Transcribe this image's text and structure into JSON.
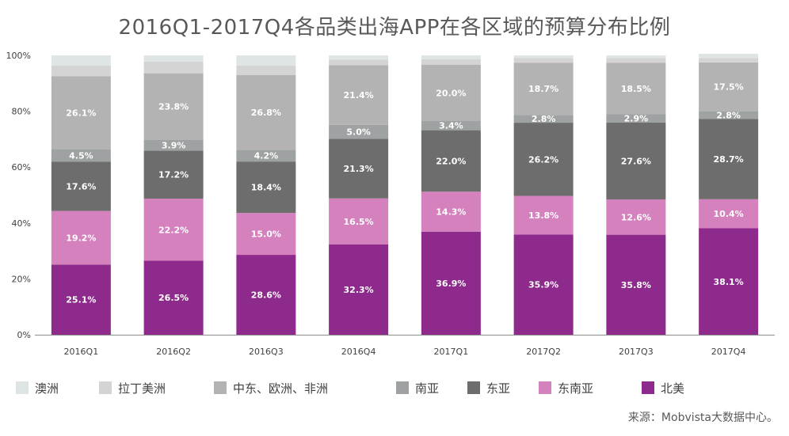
{
  "chart_data": {
    "type": "bar",
    "stacked": true,
    "title": "2016Q1-2017Q4各品类出海APP在各区域的预算分布比例",
    "categories": [
      "2016Q1",
      "2016Q2",
      "2016Q3",
      "2016Q4",
      "2017Q1",
      "2017Q2",
      "2017Q3",
      "2017Q4"
    ],
    "y_ticks": [
      "0%",
      "20%",
      "40%",
      "60%",
      "80%",
      "100%"
    ],
    "ylim": [
      0,
      100
    ],
    "series": [
      {
        "name": "北美",
        "color": "#8e2a8c",
        "values": [
          25.1,
          26.5,
          28.6,
          32.3,
          36.9,
          35.9,
          35.8,
          38.1
        ],
        "labels": [
          "25.1%",
          "26.5%",
          "28.6%",
          "32.3%",
          "36.9%",
          "35.9%",
          "35.8%",
          "38.1%"
        ],
        "label_color": "#ffffff"
      },
      {
        "name": "东南亚",
        "color": "#d481bd",
        "values": [
          19.2,
          22.2,
          15.0,
          16.5,
          14.3,
          13.8,
          12.6,
          10.4
        ],
        "labels": [
          "19.2%",
          "22.2%",
          "15.0%",
          "16.5%",
          "14.3%",
          "13.8%",
          "12.6%",
          "10.4%"
        ],
        "label_color": "#ffffff"
      },
      {
        "name": "东亚",
        "color": "#6d6d6d",
        "values": [
          17.6,
          17.2,
          18.4,
          21.3,
          22.0,
          26.2,
          27.6,
          28.7
        ],
        "labels": [
          "17.6%",
          "17.2%",
          "18.4%",
          "21.3%",
          "22.0%",
          "26.2%",
          "27.6%",
          "28.7%"
        ],
        "label_color": "#ffffff"
      },
      {
        "name": "南亚",
        "color": "#9ea2a2",
        "values": [
          4.5,
          3.9,
          4.2,
          5.0,
          3.4,
          2.8,
          2.9,
          2.8
        ],
        "labels": [
          "4.5%",
          "3.9%",
          "4.2%",
          "5.0%",
          "3.4%",
          "2.8%",
          "2.9%",
          "2.8%"
        ],
        "label_color": "#ffffff"
      },
      {
        "name": "中东、欧洲、非洲",
        "color": "#b3b3b3",
        "values": [
          26.1,
          23.8,
          26.8,
          21.4,
          20.0,
          18.7,
          18.5,
          17.5
        ],
        "labels": [
          "26.1%",
          "23.8%",
          "26.8%",
          "21.4%",
          "20.0%",
          "18.7%",
          "18.5%",
          "17.5%"
        ],
        "label_color": "#ffffff"
      },
      {
        "name": "拉丁美洲",
        "color": "#d4d4d4",
        "values": [
          3.8,
          4.2,
          3.4,
          2.0,
          2.0,
          1.6,
          1.6,
          1.6
        ],
        "labels": null,
        "label_color": "#ffffff"
      },
      {
        "name": "澳洲",
        "color": "#dfe4e4",
        "values": [
          3.7,
          2.2,
          3.6,
          1.5,
          1.4,
          1.0,
          1.0,
          1.5
        ],
        "labels": null,
        "label_color": "#ffffff"
      }
    ],
    "legend_order": [
      "澳洲",
      "拉丁美洲",
      "中东、欧洲、非洲",
      "南亚",
      "东亚",
      "东南亚",
      "北美"
    ],
    "legend_position": "bottom"
  },
  "source": "来源：Mobvista大数据中心。"
}
